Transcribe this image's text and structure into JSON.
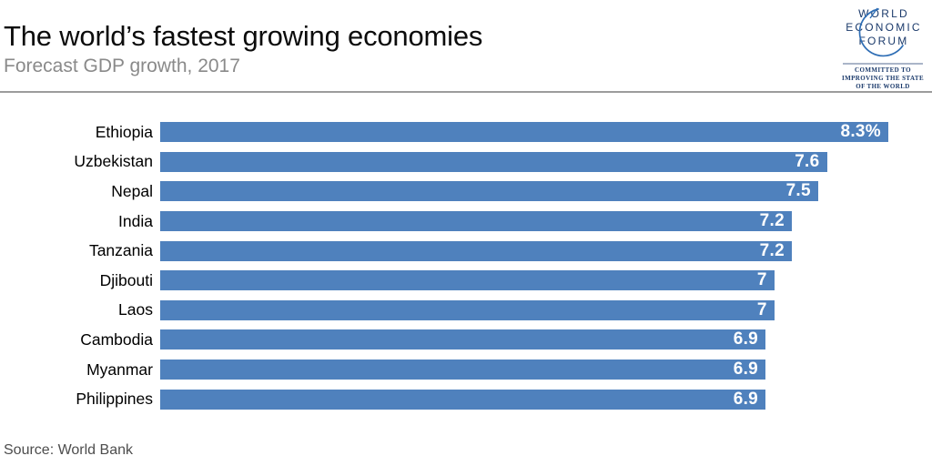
{
  "header": {
    "title": "The world’s fastest growing economies",
    "subtitle": "Forecast GDP growth, 2017"
  },
  "logo": {
    "line1": "WORLD",
    "line2": "ECONOMIC",
    "line3": "FORUM",
    "tagline1": "COMMITTED TO",
    "tagline2": "IMPROVING THE STATE",
    "tagline3": "OF THE WORLD",
    "text_color": "#1b3a6b",
    "swoosh_color": "#2f6eb5"
  },
  "chart_data": {
    "type": "bar",
    "orientation": "horizontal",
    "title": "The world’s fastest growing economies",
    "subtitle": "Forecast GDP growth, 2017",
    "categories": [
      "Ethiopia",
      "Uzbekistan",
      "Nepal",
      "India",
      "Tanzania",
      "Djibouti",
      "Laos",
      "Cambodia",
      "Myanmar",
      "Philippines"
    ],
    "values": [
      8.3,
      7.6,
      7.5,
      7.2,
      7.2,
      7,
      7,
      6.9,
      6.9,
      6.9
    ],
    "value_labels": [
      "8.3%",
      "7.6",
      "7.5",
      "7.2",
      "7.2",
      "7",
      "7",
      "6.9",
      "6.9",
      "6.9"
    ],
    "unit": "%",
    "xlim": [
      0,
      8.3
    ],
    "bar_color": "#4f81bd",
    "value_label_color": "#ffffff",
    "grid": false,
    "legend": false
  },
  "footer": {
    "source": "Source: World Bank"
  }
}
